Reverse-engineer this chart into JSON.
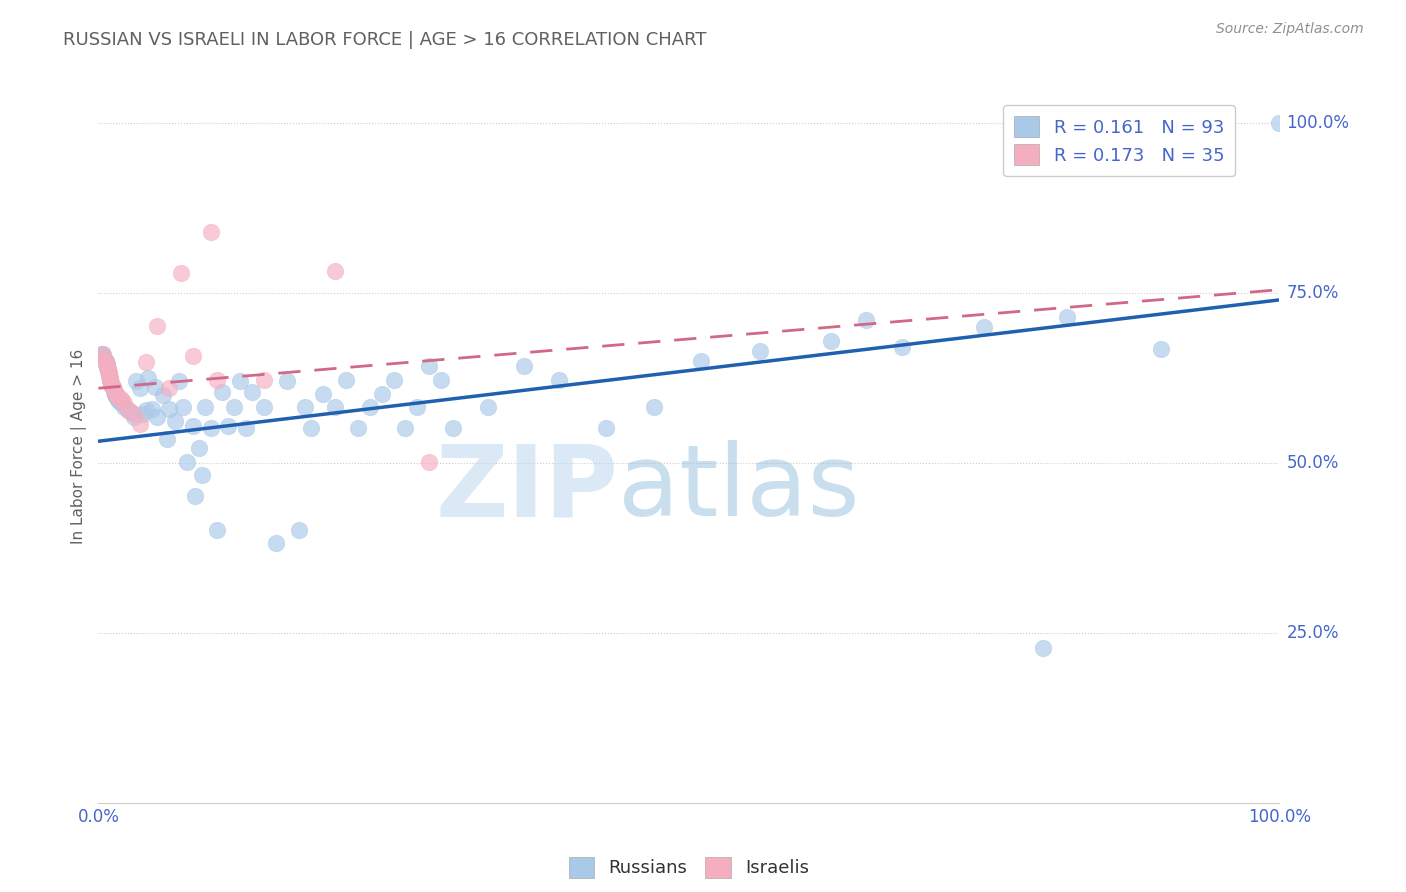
{
  "title": "RUSSIAN VS ISRAELI IN LABOR FORCE | AGE > 16 CORRELATION CHART",
  "source_text": "Source: ZipAtlas.com",
  "ylabel": "In Labor Force | Age > 16",
  "xlim": [
    0,
    1
  ],
  "ylim": [
    0,
    1.05
  ],
  "ytick_positions": [
    0.25,
    0.5,
    0.75,
    1.0
  ],
  "ytick_labels": [
    "25.0%",
    "50.0%",
    "75.0%",
    "100.0%"
  ],
  "xtick_positions": [
    0.0,
    1.0
  ],
  "xtick_labels": [
    "0.0%",
    "100.0%"
  ],
  "watermark_zip": "ZIP",
  "watermark_atlas": "atlas",
  "legend_R1": "0.161",
  "legend_N1": "93",
  "legend_R2": "0.173",
  "legend_N2": "35",
  "blue_dot_color": "#aac8e8",
  "pink_dot_color": "#f4aec0",
  "blue_line_color": "#2060b0",
  "pink_line_color": "#d06888",
  "tick_label_color": "#4466cc",
  "title_color": "#606060",
  "source_color": "#909090",
  "grid_color": "#cccccc",
  "russians_x": [
    0.003,
    0.004,
    0.005,
    0.005,
    0.006,
    0.006,
    0.007,
    0.007,
    0.007,
    0.008,
    0.008,
    0.009,
    0.009,
    0.01,
    0.01,
    0.01,
    0.011,
    0.011,
    0.012,
    0.012,
    0.013,
    0.014,
    0.014,
    0.015,
    0.016,
    0.017,
    0.018,
    0.02,
    0.022,
    0.025,
    0.028,
    0.03,
    0.032,
    0.035,
    0.038,
    0.04,
    0.042,
    0.045,
    0.048,
    0.05,
    0.055,
    0.058,
    0.06,
    0.065,
    0.068,
    0.072,
    0.075,
    0.08,
    0.082,
    0.085,
    0.088,
    0.09,
    0.095,
    0.1,
    0.105,
    0.11,
    0.115,
    0.12,
    0.125,
    0.13,
    0.14,
    0.15,
    0.16,
    0.17,
    0.175,
    0.18,
    0.19,
    0.2,
    0.21,
    0.22,
    0.23,
    0.24,
    0.25,
    0.26,
    0.27,
    0.28,
    0.29,
    0.3,
    0.33,
    0.36,
    0.39,
    0.43,
    0.47,
    0.51,
    0.56,
    0.62,
    0.68,
    0.75,
    0.82,
    0.9,
    0.65,
    0.8,
    1.0
  ],
  "russians_y": [
    0.66,
    0.66,
    0.655,
    0.65,
    0.65,
    0.648,
    0.645,
    0.642,
    0.64,
    0.638,
    0.635,
    0.632,
    0.63,
    0.625,
    0.622,
    0.62,
    0.618,
    0.615,
    0.612,
    0.61,
    0.605,
    0.602,
    0.6,
    0.598,
    0.595,
    0.592,
    0.59,
    0.588,
    0.582,
    0.578,
    0.575,
    0.568,
    0.62,
    0.61,
    0.572,
    0.578,
    0.625,
    0.58,
    0.612,
    0.568,
    0.6,
    0.535,
    0.58,
    0.562,
    0.62,
    0.582,
    0.502,
    0.555,
    0.452,
    0.522,
    0.482,
    0.582,
    0.552,
    0.402,
    0.605,
    0.555,
    0.582,
    0.62,
    0.552,
    0.605,
    0.582,
    0.382,
    0.62,
    0.402,
    0.582,
    0.552,
    0.602,
    0.582,
    0.622,
    0.552,
    0.582,
    0.602,
    0.622,
    0.552,
    0.582,
    0.642,
    0.622,
    0.552,
    0.582,
    0.642,
    0.622,
    0.552,
    0.582,
    0.65,
    0.665,
    0.68,
    0.67,
    0.7,
    0.715,
    0.668,
    0.71,
    0.228,
    1.0
  ],
  "israelis_x": [
    0.003,
    0.004,
    0.005,
    0.006,
    0.007,
    0.007,
    0.008,
    0.008,
    0.009,
    0.009,
    0.01,
    0.01,
    0.011,
    0.011,
    0.012,
    0.013,
    0.014,
    0.015,
    0.016,
    0.018,
    0.02,
    0.022,
    0.025,
    0.03,
    0.035,
    0.04,
    0.05,
    0.06,
    0.08,
    0.1,
    0.14,
    0.2,
    0.28,
    0.07,
    0.095
  ],
  "israelis_y": [
    0.66,
    0.655,
    0.652,
    0.648,
    0.645,
    0.642,
    0.638,
    0.635,
    0.632,
    0.628,
    0.625,
    0.622,
    0.618,
    0.615,
    0.612,
    0.608,
    0.605,
    0.602,
    0.598,
    0.595,
    0.592,
    0.588,
    0.578,
    0.572,
    0.558,
    0.648,
    0.702,
    0.61,
    0.658,
    0.622,
    0.622,
    0.782,
    0.502,
    0.78,
    0.84
  ],
  "blue_trend": [
    0.0,
    0.532,
    1.0,
    0.74
  ],
  "pink_trend": [
    0.0,
    0.61,
    1.0,
    0.755
  ]
}
